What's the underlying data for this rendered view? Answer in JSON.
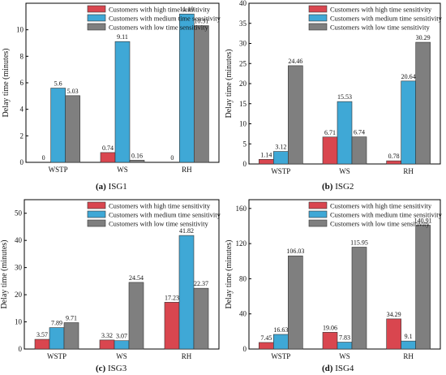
{
  "colors": {
    "high": "#d9464f",
    "medium": "#3fa8d6",
    "low": "#7f7f7f"
  },
  "chart_data": [
    {
      "type": "bar",
      "ylabel": "Delay time (minutes)",
      "ylim": [
        0,
        12
      ],
      "yticks": [
        0,
        2,
        4,
        6,
        8,
        10
      ],
      "categories": [
        "WSTP",
        "WS",
        "RH"
      ],
      "legend_position": "top-right",
      "caption_label": "(a)",
      "caption_text": "ISG1",
      "series": [
        {
          "name": "Customers with high time sensitivity",
          "values": [
            0,
            0.74,
            0
          ],
          "labels": [
            "0",
            "0.74",
            "0"
          ]
        },
        {
          "name": "Customers with medium time sensitivity",
          "values": [
            5.6,
            9.11,
            11.19
          ],
          "labels": [
            "5.6",
            "9.11",
            "11.19"
          ]
        },
        {
          "name": "Customers with low time sensitivity",
          "values": [
            5.03,
            0.16,
            10.31
          ],
          "labels": [
            "5.03",
            "0.16",
            "10.31"
          ]
        }
      ]
    },
    {
      "type": "bar",
      "ylabel": "Delay time (minutes)",
      "ylim": [
        0,
        40
      ],
      "yticks": [
        0,
        5,
        10,
        15,
        20,
        25,
        30,
        35,
        40
      ],
      "categories": [
        "WSTP",
        "WS",
        "RH"
      ],
      "legend_position": "top-right",
      "caption_label": "(b)",
      "caption_text": "ISG2",
      "series": [
        {
          "name": "Customers with high time sensitivity",
          "values": [
            1.14,
            6.71,
            0.78
          ],
          "labels": [
            "1.14",
            "6.71",
            "0.78"
          ]
        },
        {
          "name": "Customers with medium time sensitivity",
          "values": [
            3.12,
            15.53,
            20.64
          ],
          "labels": [
            "3.12",
            "15.53",
            "20.64"
          ]
        },
        {
          "name": "Customers with low time sensitivity",
          "values": [
            24.46,
            6.74,
            30.29
          ],
          "labels": [
            "24.46",
            "6.74",
            "30.29"
          ]
        }
      ]
    },
    {
      "type": "bar",
      "ylabel": "Delay time (minutes)",
      "ylim": [
        0,
        55
      ],
      "yticks": [
        0,
        10,
        20,
        30,
        40,
        50
      ],
      "categories": [
        "WSTP",
        "WS",
        "RH"
      ],
      "legend_position": "top-right",
      "caption_label": "(c)",
      "caption_text": "ISG3",
      "series": [
        {
          "name": "Customers with high time sensitivity",
          "values": [
            3.57,
            3.32,
            17.23
          ],
          "labels": [
            "3.57",
            "3.32",
            "17.23"
          ]
        },
        {
          "name": "Customers with medium time sensitivity",
          "values": [
            7.89,
            3.07,
            41.82
          ],
          "labels": [
            "7.89",
            "3.07",
            "41.82"
          ]
        },
        {
          "name": "Customers with low time sensitivity",
          "values": [
            9.71,
            24.54,
            22.37
          ],
          "labels": [
            "9.71",
            "24.54",
            "22.37"
          ]
        }
      ]
    },
    {
      "type": "bar",
      "ylabel": "Delay time (minutes)",
      "ylim": [
        0,
        170
      ],
      "yticks": [
        0,
        40,
        80,
        120,
        160
      ],
      "categories": [
        "WSTP",
        "WS",
        "RH"
      ],
      "legend_position": "top-right",
      "caption_label": "(d)",
      "caption_text": "ISG4",
      "series": [
        {
          "name": "Customers with high time sensitivity",
          "values": [
            7.45,
            19.06,
            34.29
          ],
          "labels": [
            "7.45",
            "19.06",
            "34.29"
          ]
        },
        {
          "name": "Customers with medium time sensitivity",
          "values": [
            16.63,
            7.83,
            9.1
          ],
          "labels": [
            "16.63",
            "7.83",
            "9.1"
          ]
        },
        {
          "name": "Customers with low time sensitivity",
          "values": [
            106.03,
            115.95,
            140.91
          ],
          "labels": [
            "106.03",
            "115.95",
            "140.91"
          ]
        }
      ]
    }
  ]
}
